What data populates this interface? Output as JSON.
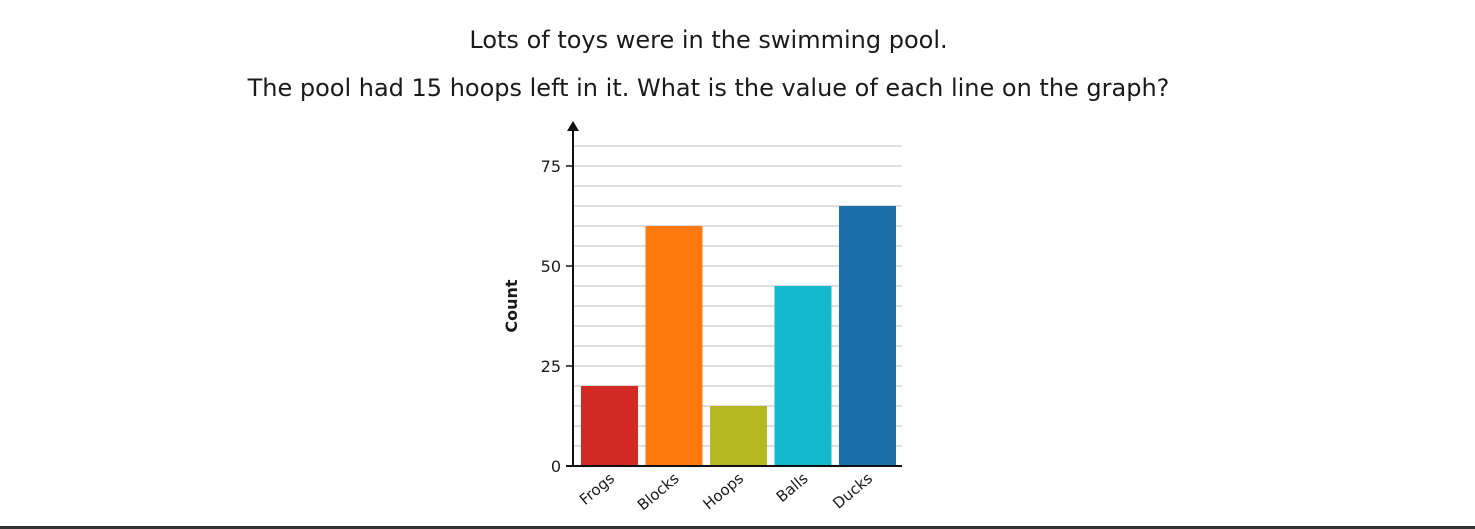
{
  "prompt": {
    "line1": "Lots of toys were in the swimming pool.",
    "line2": "The pool had 15 hoops left in it. What is the value of each line on the graph?"
  },
  "chart_data": {
    "type": "bar",
    "title": "",
    "xlabel": "",
    "ylabel": "Count",
    "categories": [
      "Frogs",
      "Blocks",
      "Hoops",
      "Balls",
      "Ducks"
    ],
    "values": [
      20,
      60,
      15,
      45,
      65
    ],
    "colors": [
      "#d42a26",
      "#ff7a0e",
      "#b6b822",
      "#14b8cc",
      "#1b70aa"
    ],
    "ylim": [
      0,
      80
    ],
    "yticks": [
      "0",
      "25",
      "50",
      "75"
    ],
    "ytick_values": [
      0,
      25,
      50,
      75
    ],
    "grid_step": 5,
    "grid": true,
    "legend": "none"
  }
}
